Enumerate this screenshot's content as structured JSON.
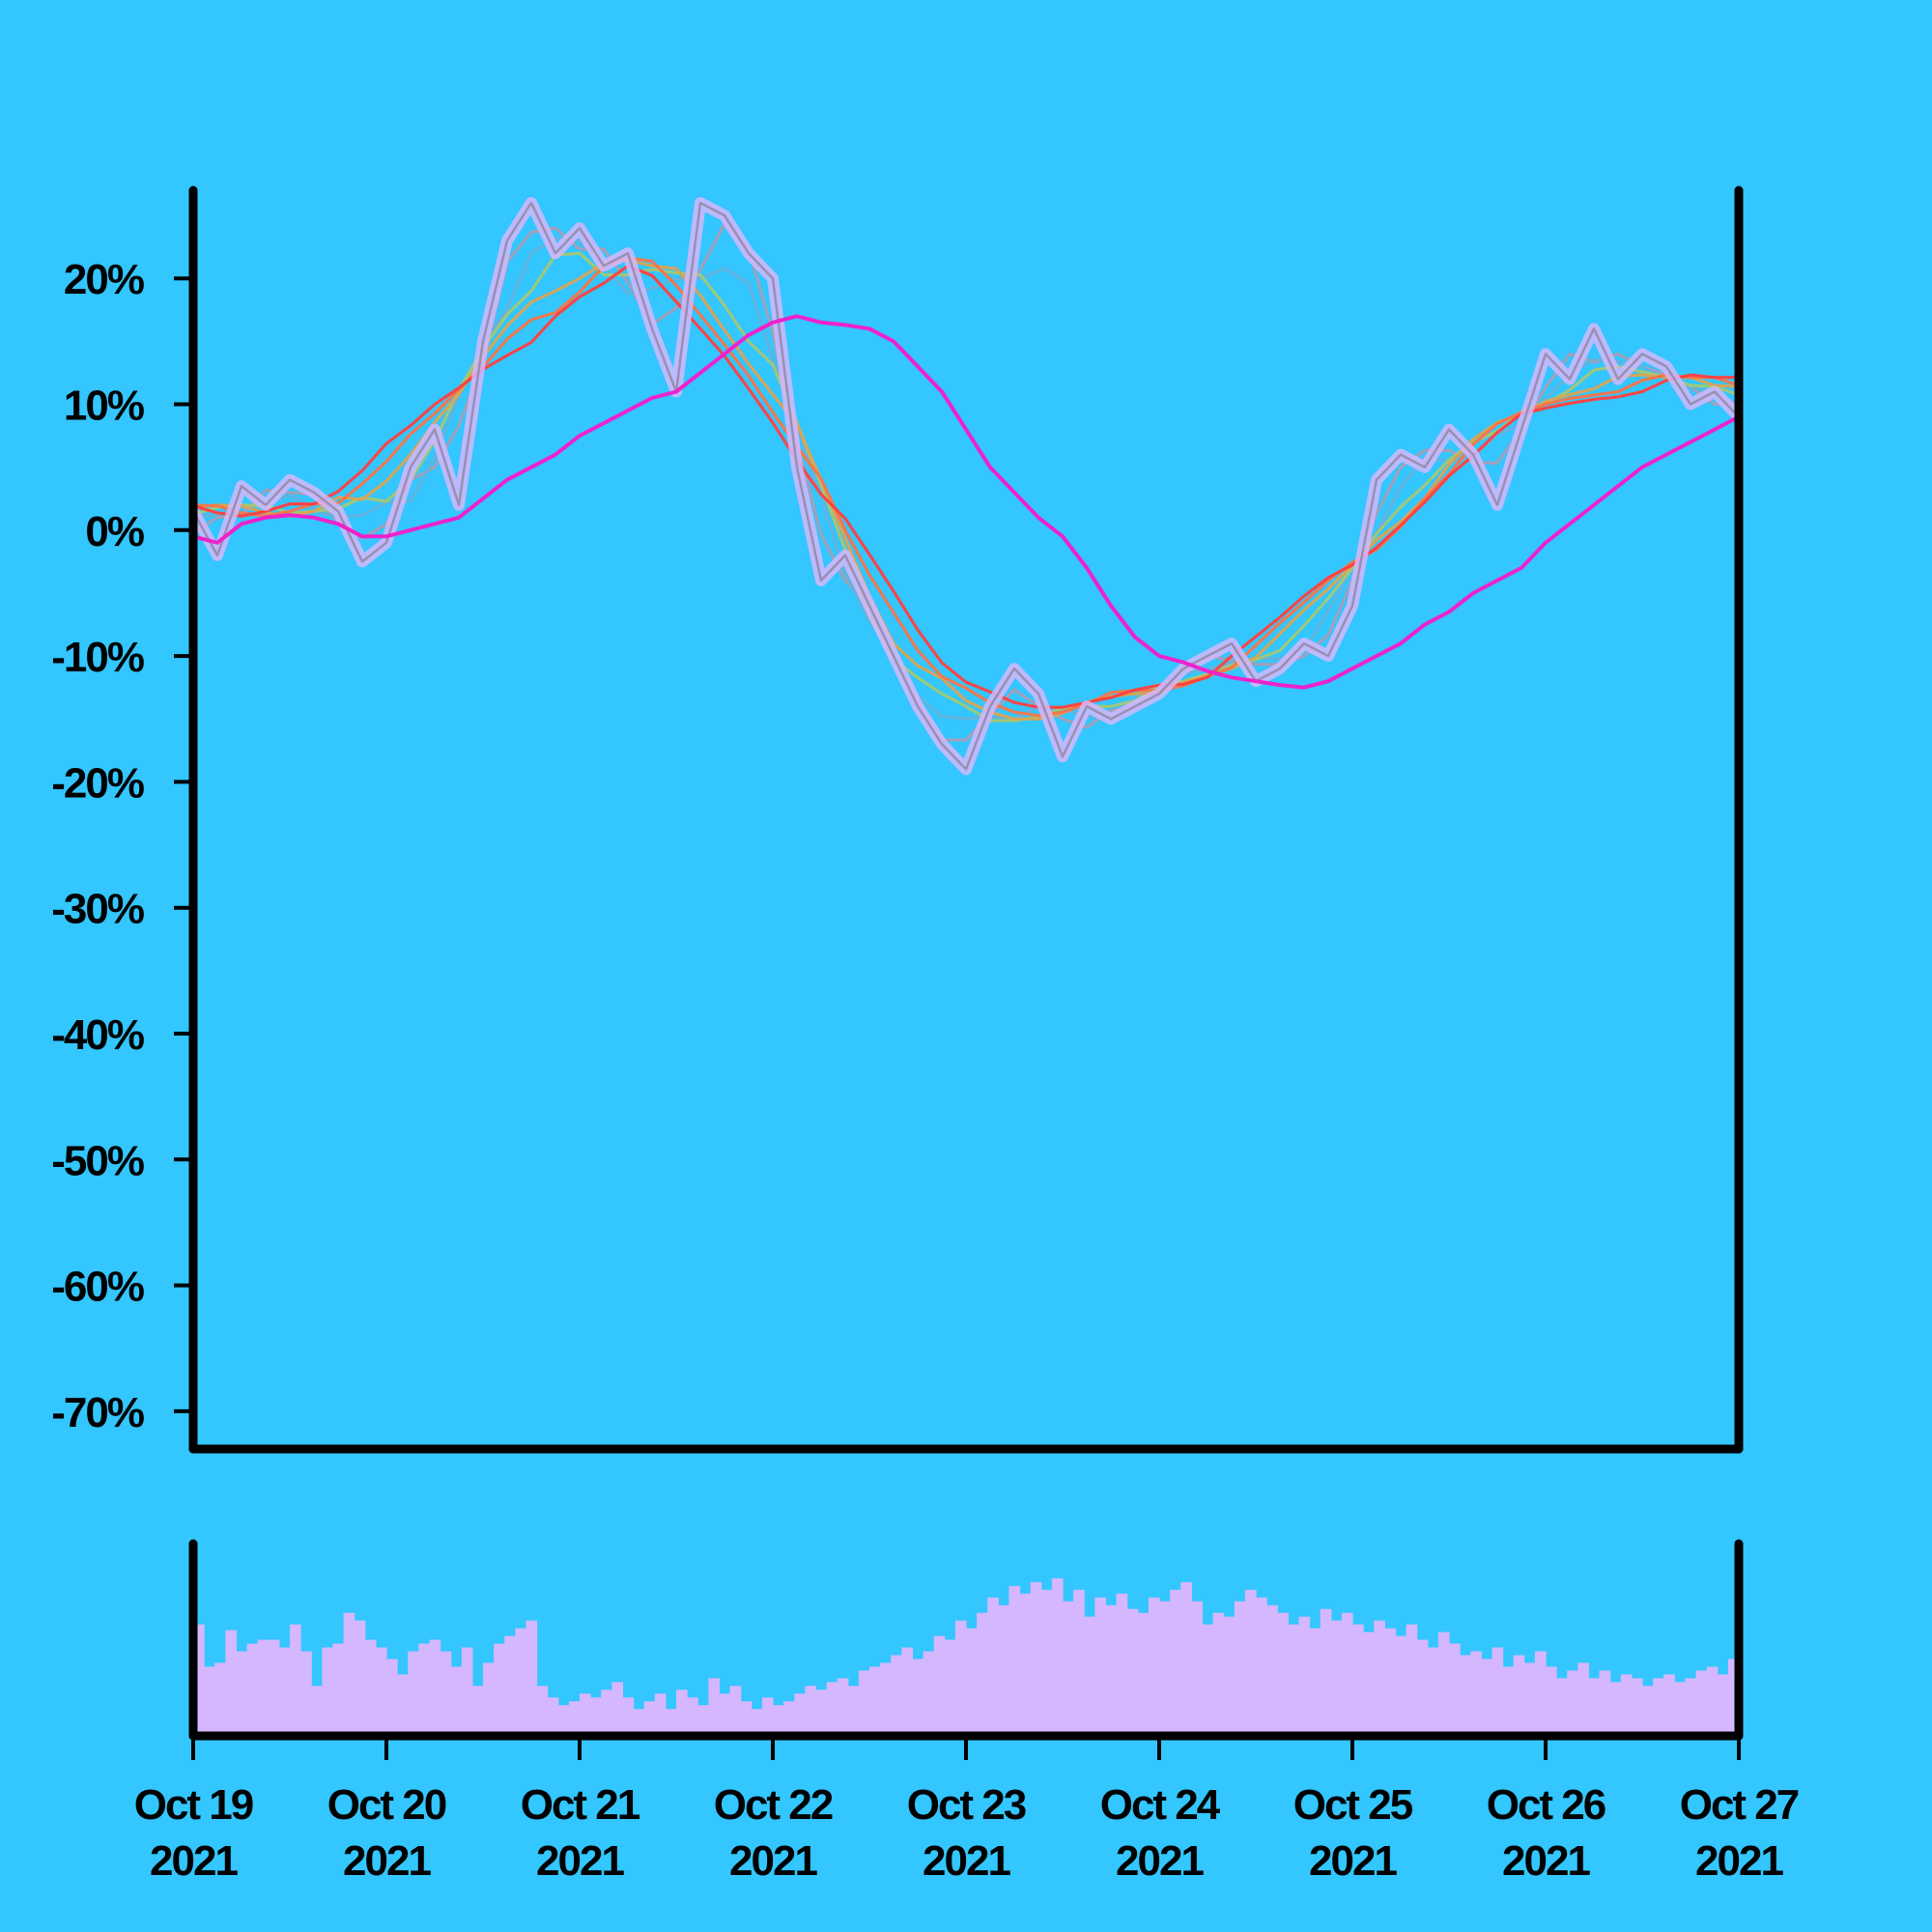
{
  "chart_data": {
    "type": "line",
    "title": "",
    "xlabel": "",
    "ylabel": "",
    "background": "#33c6ff",
    "grid": false,
    "legend": "none",
    "x_range": [
      "2021-10-19",
      "2021-10-27"
    ],
    "x_ticks": [
      {
        "date": "2021-10-19",
        "line1": "Oct 19",
        "line2": "2021"
      },
      {
        "date": "2021-10-20",
        "line1": "Oct 20",
        "line2": "2021"
      },
      {
        "date": "2021-10-21",
        "line1": "Oct 21",
        "line2": "2021"
      },
      {
        "date": "2021-10-22",
        "line1": "Oct 22",
        "line2": "2021"
      },
      {
        "date": "2021-10-23",
        "line1": "Oct 23",
        "line2": "2021"
      },
      {
        "date": "2021-10-24",
        "line1": "Oct 24",
        "line2": "2021"
      },
      {
        "date": "2021-10-25",
        "line1": "Oct 25",
        "line2": "2021"
      },
      {
        "date": "2021-10-26",
        "line1": "Oct 26",
        "line2": "2021"
      },
      {
        "date": "2021-10-27",
        "line1": "Oct 27",
        "line2": "2021"
      }
    ],
    "y_range": [
      -73,
      27
    ],
    "y_ticks": [
      {
        "value": 20,
        "label": "20%"
      },
      {
        "value": 10,
        "label": "10%"
      },
      {
        "value": 0,
        "label": "0%"
      },
      {
        "value": -10,
        "label": "-10%"
      },
      {
        "value": -20,
        "label": "-20%"
      },
      {
        "value": -30,
        "label": "-30%"
      },
      {
        "value": -40,
        "label": "-40%"
      },
      {
        "value": -50,
        "label": "-50%"
      },
      {
        "value": -60,
        "label": "-60%"
      },
      {
        "value": -70,
        "label": "-70%"
      }
    ],
    "price_series": {
      "color": "#d5b7ff",
      "points": [
        [
          "2021-10-19 00:00",
          1.5
        ],
        [
          "2021-10-19 03:00",
          -2.0
        ],
        [
          "2021-10-19 06:00",
          3.5
        ],
        [
          "2021-10-19 09:00",
          2.0
        ],
        [
          "2021-10-19 12:00",
          4.0
        ],
        [
          "2021-10-19 15:00",
          3.0
        ],
        [
          "2021-10-19 18:00",
          1.5
        ],
        [
          "2021-10-19 21:00",
          -2.5
        ],
        [
          "2021-10-20 00:00",
          -1.0
        ],
        [
          "2021-10-20 03:00",
          5.0
        ],
        [
          "2021-10-20 06:00",
          8.0
        ],
        [
          "2021-10-20 09:00",
          2.0
        ],
        [
          "2021-10-20 12:00",
          15.0
        ],
        [
          "2021-10-20 15:00",
          23.0
        ],
        [
          "2021-10-20 18:00",
          26.0
        ],
        [
          "2021-10-20 21:00",
          22.0
        ],
        [
          "2021-10-21 00:00",
          24.0
        ],
        [
          "2021-10-21 03:00",
          21.0
        ],
        [
          "2021-10-21 06:00",
          22.0
        ],
        [
          "2021-10-21 09:00",
          16.0
        ],
        [
          "2021-10-21 12:00",
          11.0
        ],
        [
          "2021-10-21 15:00",
          26.0
        ],
        [
          "2021-10-21 18:00",
          25.0
        ],
        [
          "2021-10-21 21:00",
          22.0
        ],
        [
          "2021-10-22 00:00",
          20.0
        ],
        [
          "2021-10-22 03:00",
          5.0
        ],
        [
          "2021-10-22 06:00",
          -4.0
        ],
        [
          "2021-10-22 09:00",
          -2.0
        ],
        [
          "2021-10-22 12:00",
          -6.0
        ],
        [
          "2021-10-22 15:00",
          -10.0
        ],
        [
          "2021-10-22 18:00",
          -14.0
        ],
        [
          "2021-10-22 21:00",
          -17.0
        ],
        [
          "2021-10-23 00:00",
          -19.0
        ],
        [
          "2021-10-23 03:00",
          -14.0
        ],
        [
          "2021-10-23 06:00",
          -11.0
        ],
        [
          "2021-10-23 09:00",
          -13.0
        ],
        [
          "2021-10-23 12:00",
          -18.0
        ],
        [
          "2021-10-23 15:00",
          -14.0
        ],
        [
          "2021-10-23 18:00",
          -15.0
        ],
        [
          "2021-10-23 21:00",
          -14.0
        ],
        [
          "2021-10-24 00:00",
          -13.0
        ],
        [
          "2021-10-24 03:00",
          -11.0
        ],
        [
          "2021-10-24 06:00",
          -10.0
        ],
        [
          "2021-10-24 09:00",
          -9.0
        ],
        [
          "2021-10-24 12:00",
          -12.0
        ],
        [
          "2021-10-24 15:00",
          -11.0
        ],
        [
          "2021-10-24 18:00",
          -9.0
        ],
        [
          "2021-10-24 21:00",
          -10.0
        ],
        [
          "2021-10-25 00:00",
          -6.0
        ],
        [
          "2021-10-25 03:00",
          4.0
        ],
        [
          "2021-10-25 06:00",
          6.0
        ],
        [
          "2021-10-25 09:00",
          5.0
        ],
        [
          "2021-10-25 12:00",
          8.0
        ],
        [
          "2021-10-25 15:00",
          6.0
        ],
        [
          "2021-10-25 18:00",
          2.0
        ],
        [
          "2021-10-25 21:00",
          8.0
        ],
        [
          "2021-10-26 00:00",
          14.0
        ],
        [
          "2021-10-26 03:00",
          12.0
        ],
        [
          "2021-10-26 06:00",
          16.0
        ],
        [
          "2021-10-26 09:00",
          12.0
        ],
        [
          "2021-10-26 12:00",
          14.0
        ],
        [
          "2021-10-26 15:00",
          13.0
        ],
        [
          "2021-10-26 18:00",
          10.0
        ],
        [
          "2021-10-26 21:00",
          11.0
        ],
        [
          "2021-10-27 00:00",
          9.0
        ]
      ]
    },
    "moving_average_bands": {
      "count": 12,
      "colors": [
        "#9a9fb0",
        "#a99fb8",
        "#4fa7e8",
        "#6cb4d8",
        "#8fc98a",
        "#a8c870",
        "#c8b860",
        "#e0a050",
        "#f08a48",
        "#f87048",
        "#ff5050",
        "#ff3c3c"
      ]
    },
    "trend_series": {
      "color": "#ee22cc",
      "points": [
        [
          "2021-10-19 00:00",
          -0.5
        ],
        [
          "2021-10-19 03:00",
          -1.0
        ],
        [
          "2021-10-19 06:00",
          0.5
        ],
        [
          "2021-10-19 09:00",
          1.0
        ],
        [
          "2021-10-19 12:00",
          1.2
        ],
        [
          "2021-10-19 15:00",
          1.0
        ],
        [
          "2021-10-19 18:00",
          0.5
        ],
        [
          "2021-10-19 21:00",
          -0.5
        ],
        [
          "2021-10-20 00:00",
          -0.5
        ],
        [
          "2021-10-20 03:00",
          0.0
        ],
        [
          "2021-10-20 06:00",
          0.5
        ],
        [
          "2021-10-20 09:00",
          1.0
        ],
        [
          "2021-10-20 12:00",
          2.5
        ],
        [
          "2021-10-20 15:00",
          4.0
        ],
        [
          "2021-10-20 18:00",
          5.0
        ],
        [
          "2021-10-20 21:00",
          6.0
        ],
        [
          "2021-10-21 00:00",
          7.5
        ],
        [
          "2021-10-21 03:00",
          8.5
        ],
        [
          "2021-10-21 06:00",
          9.5
        ],
        [
          "2021-10-21 09:00",
          10.5
        ],
        [
          "2021-10-21 12:00",
          11.0
        ],
        [
          "2021-10-21 15:00",
          12.5
        ],
        [
          "2021-10-21 18:00",
          14.0
        ],
        [
          "2021-10-21 21:00",
          15.5
        ],
        [
          "2021-10-22 00:00",
          16.5
        ],
        [
          "2021-10-22 03:00",
          17.0
        ],
        [
          "2021-10-22 06:00",
          16.5
        ],
        [
          "2021-10-22 09:00",
          16.3
        ],
        [
          "2021-10-22 12:00",
          16.0
        ],
        [
          "2021-10-22 15:00",
          15.0
        ],
        [
          "2021-10-22 18:00",
          13.0
        ],
        [
          "2021-10-22 21:00",
          11.0
        ],
        [
          "2021-10-23 00:00",
          8.0
        ],
        [
          "2021-10-23 03:00",
          5.0
        ],
        [
          "2021-10-23 06:00",
          3.0
        ],
        [
          "2021-10-23 09:00",
          1.0
        ],
        [
          "2021-10-23 12:00",
          -0.5
        ],
        [
          "2021-10-23 15:00",
          -3.0
        ],
        [
          "2021-10-23 18:00",
          -6.0
        ],
        [
          "2021-10-23 21:00",
          -8.5
        ],
        [
          "2021-10-24 00:00",
          -10.0
        ],
        [
          "2021-10-24 03:00",
          -10.5
        ],
        [
          "2021-10-24 06:00",
          -11.2
        ],
        [
          "2021-10-24 09:00",
          -11.7
        ],
        [
          "2021-10-24 12:00",
          -12.0
        ],
        [
          "2021-10-24 15:00",
          -12.3
        ],
        [
          "2021-10-24 18:00",
          -12.5
        ],
        [
          "2021-10-24 21:00",
          -12.0
        ],
        [
          "2021-10-25 00:00",
          -11.0
        ],
        [
          "2021-10-25 03:00",
          -10.0
        ],
        [
          "2021-10-25 06:00",
          -9.0
        ],
        [
          "2021-10-25 09:00",
          -7.5
        ],
        [
          "2021-10-25 12:00",
          -6.5
        ],
        [
          "2021-10-25 15:00",
          -5.0
        ],
        [
          "2021-10-25 18:00",
          -4.0
        ],
        [
          "2021-10-25 21:00",
          -3.0
        ],
        [
          "2021-10-26 00:00",
          -1.0
        ],
        [
          "2021-10-26 03:00",
          0.5
        ],
        [
          "2021-10-26 06:00",
          2.0
        ],
        [
          "2021-10-26 09:00",
          3.5
        ],
        [
          "2021-10-26 12:00",
          5.0
        ],
        [
          "2021-10-26 15:00",
          6.0
        ],
        [
          "2021-10-26 18:00",
          7.0
        ],
        [
          "2021-10-26 21:00",
          8.0
        ],
        [
          "2021-10-27 00:00",
          9.0
        ]
      ]
    },
    "volume": {
      "color": "#d5b7ff",
      "y_range": [
        0,
        1
      ],
      "bins_start": "2021-10-19",
      "bins_end": "2021-10-27",
      "values": [
        0.58,
        0.36,
        0.38,
        0.55,
        0.44,
        0.48,
        0.5,
        0.5,
        0.46,
        0.58,
        0.44,
        0.26,
        0.46,
        0.48,
        0.64,
        0.6,
        0.5,
        0.46,
        0.4,
        0.32,
        0.44,
        0.48,
        0.5,
        0.44,
        0.36,
        0.46,
        0.26,
        0.38,
        0.48,
        0.52,
        0.56,
        0.6,
        0.26,
        0.2,
        0.16,
        0.18,
        0.22,
        0.2,
        0.24,
        0.28,
        0.2,
        0.14,
        0.18,
        0.22,
        0.14,
        0.24,
        0.2,
        0.16,
        0.3,
        0.22,
        0.26,
        0.18,
        0.14,
        0.2,
        0.16,
        0.18,
        0.22,
        0.26,
        0.24,
        0.28,
        0.3,
        0.26,
        0.34,
        0.36,
        0.38,
        0.42,
        0.46,
        0.4,
        0.44,
        0.52,
        0.5,
        0.6,
        0.56,
        0.64,
        0.72,
        0.68,
        0.78,
        0.74,
        0.8,
        0.76,
        0.82,
        0.7,
        0.76,
        0.62,
        0.72,
        0.68,
        0.74,
        0.66,
        0.64,
        0.72,
        0.7,
        0.76,
        0.8,
        0.7,
        0.58,
        0.64,
        0.62,
        0.7,
        0.76,
        0.72,
        0.68,
        0.64,
        0.58,
        0.62,
        0.56,
        0.66,
        0.6,
        0.64,
        0.58,
        0.54,
        0.6,
        0.56,
        0.52,
        0.58,
        0.5,
        0.46,
        0.54,
        0.48,
        0.42,
        0.44,
        0.4,
        0.46,
        0.36,
        0.42,
        0.38,
        0.44,
        0.36,
        0.3,
        0.34,
        0.38,
        0.3,
        0.34,
        0.28,
        0.32,
        0.3,
        0.26,
        0.3,
        0.32,
        0.28,
        0.3,
        0.34,
        0.36,
        0.32,
        0.4
      ]
    }
  }
}
